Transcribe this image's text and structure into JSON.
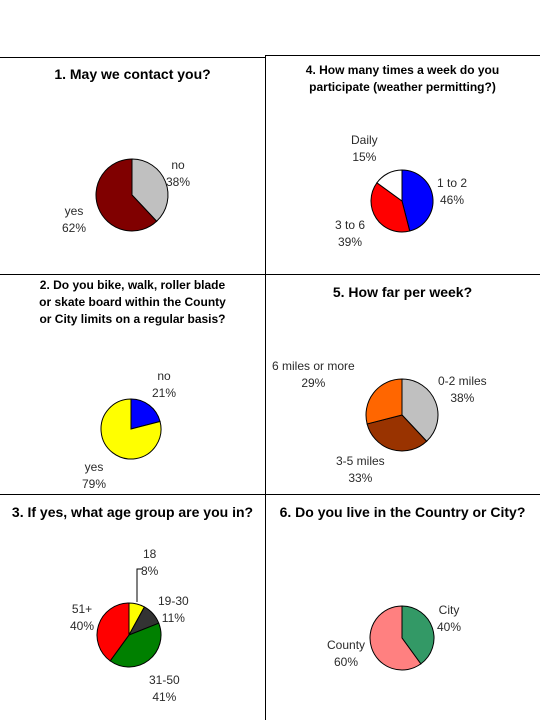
{
  "chart_data": [
    {
      "type": "pie",
      "title": "1. May we contact you?",
      "slices": [
        {
          "label": "no",
          "value": 38,
          "display": "38%",
          "color": "#c0c0c0"
        },
        {
          "label": "yes",
          "value": 62,
          "display": "62%",
          "color": "#800000"
        }
      ]
    },
    {
      "type": "pie",
      "title": "2. Do you bike, walk, roller blade or skate board within the County or City limits on a regular basis?",
      "title_lines": [
        "2. Do you bike, walk, roller blade",
        "or skate board within the County",
        "or City limits on a regular basis?"
      ],
      "slices": [
        {
          "label": "no",
          "value": 21,
          "display": "21%",
          "color": "#0000ff"
        },
        {
          "label": "yes",
          "value": 79,
          "display": "79%",
          "color": "#ffff00"
        }
      ]
    },
    {
      "type": "pie",
      "title": "3. If yes, what age group are you in?",
      "slices": [
        {
          "label": "18",
          "value": 8,
          "display": "8%",
          "color": "#ffff00"
        },
        {
          "label": "19-30",
          "value": 11,
          "display": "11%",
          "color": "#333333"
        },
        {
          "label": "31-50",
          "value": 41,
          "display": "41%",
          "color": "#008000"
        },
        {
          "label": "51+",
          "value": 40,
          "display": "40%",
          "color": "#ff0000"
        }
      ]
    },
    {
      "type": "pie",
      "title": "4. How many times a week do you participate (weather permitting?)",
      "title_lines": [
        "4. How many times a week do you",
        "participate (weather permitting?)"
      ],
      "slices": [
        {
          "label": "1 to 2",
          "value": 46,
          "display": "46%",
          "color": "#0000ff"
        },
        {
          "label": "3 to 6",
          "value": 39,
          "display": "39%",
          "color": "#ff0000"
        },
        {
          "label": "Daily",
          "value": 15,
          "display": "15%",
          "color": "#ffffff"
        }
      ]
    },
    {
      "type": "pie",
      "title": "5. How far per week?",
      "slices": [
        {
          "label": "0-2 miles",
          "value": 38,
          "display": "38%",
          "color": "#c0c0c0"
        },
        {
          "label": "3-5 miles",
          "value": 33,
          "display": "33%",
          "color": "#993300"
        },
        {
          "label": "6 miles or more",
          "value": 29,
          "display": "29%",
          "color": "#ff6600"
        }
      ]
    },
    {
      "type": "pie",
      "title": "6. Do you live in the Country or City?",
      "slices": [
        {
          "label": "City",
          "value": 40,
          "display": "40%",
          "color": "#339966"
        },
        {
          "label": "County",
          "value": 60,
          "display": "60%",
          "color": "#ff8080"
        }
      ]
    }
  ]
}
